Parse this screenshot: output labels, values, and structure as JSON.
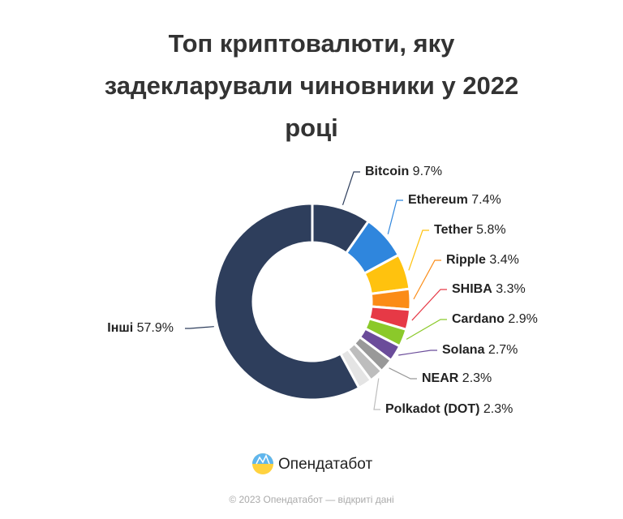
{
  "chart_data": {
    "type": "donut",
    "title": "Топ криптовалюти, яку задекларували чиновники у 2022 році",
    "categories": [
      "Bitcoin",
      "Ethereum",
      "Tether",
      "Ripple",
      "SHIBA",
      "Cardano",
      "Solana",
      "NEAR",
      "Polkadot (DOT)",
      null,
      "Інші"
    ],
    "values": [
      9.7,
      7.4,
      5.8,
      3.4,
      3.3,
      2.9,
      2.7,
      2.3,
      2.3,
      2.3,
      57.9
    ],
    "value_labels": [
      "9.7%",
      "7.4%",
      "5.8%",
      "3.4%",
      "3.3%",
      "2.9%",
      "2.7%",
      "2.3%",
      "2.3%",
      null,
      "57.9%"
    ],
    "colors": [
      "#2e3e5c",
      "#2f86dd",
      "#ffc20e",
      "#fb8c17",
      "#e63946",
      "#8bc92a",
      "#6b4c9a",
      "#999999",
      "#bdbdbd",
      "#e4e4e4",
      "#2e3e5c"
    ]
  },
  "brand": "Опендатабот",
  "footer": "© 2023 Опендатабот — відкриті дані"
}
